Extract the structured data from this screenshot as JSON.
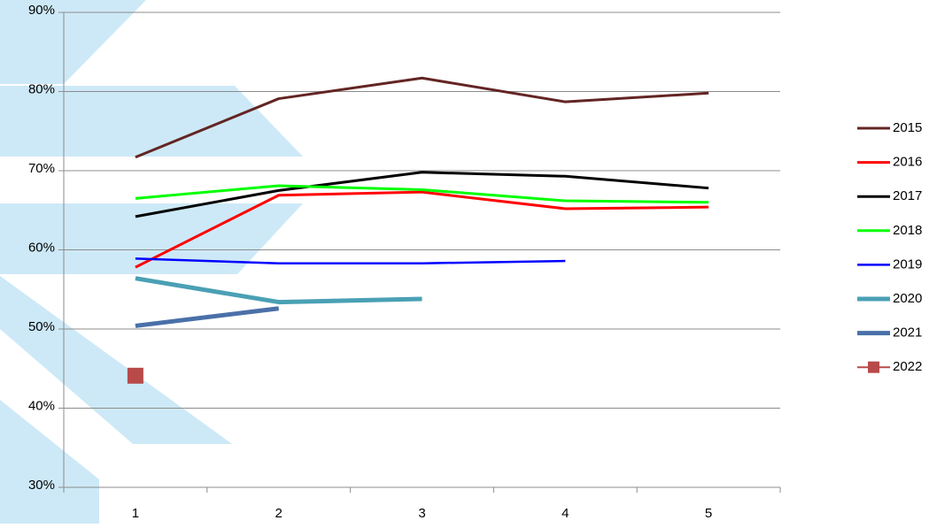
{
  "chart_data": {
    "type": "line",
    "categories": [
      "1",
      "2",
      "3",
      "4",
      "5"
    ],
    "ylim": [
      30,
      90
    ],
    "yticks": [
      {
        "value": 30,
        "label": "30%"
      },
      {
        "value": 40,
        "label": "40%"
      },
      {
        "value": 50,
        "label": "50%"
      },
      {
        "value": 60,
        "label": "60%"
      },
      {
        "value": 70,
        "label": "70%"
      },
      {
        "value": 80,
        "label": "80%"
      },
      {
        "value": 90,
        "label": "90%"
      }
    ],
    "grid": true,
    "legend": "right",
    "series": [
      {
        "name": "2015",
        "color": "#632523",
        "width": 3,
        "values": [
          71.7,
          79.1,
          81.7,
          78.7,
          79.8
        ]
      },
      {
        "name": "2016",
        "color": "#ff0000",
        "width": 3,
        "values": [
          57.8,
          66.9,
          67.3,
          65.2,
          65.4
        ]
      },
      {
        "name": "2017",
        "color": "#000000",
        "width": 3,
        "values": [
          64.2,
          67.5,
          69.8,
          69.3,
          67.8
        ]
      },
      {
        "name": "2018",
        "color": "#00ff00",
        "width": 3,
        "values": [
          66.5,
          68.1,
          67.6,
          66.2,
          66.0
        ]
      },
      {
        "name": "2019",
        "color": "#0000ff",
        "width": 2.5,
        "values": [
          58.9,
          58.3,
          58.3,
          58.6,
          null
        ]
      },
      {
        "name": "2020",
        "color": "#4aa0b5",
        "width": 5,
        "values": [
          56.4,
          53.4,
          53.8,
          null,
          null
        ]
      },
      {
        "name": "2021",
        "color": "#4a70a8",
        "width": 5,
        "values": [
          50.4,
          52.6,
          null,
          null,
          null
        ]
      },
      {
        "name": "2022",
        "color": "#b84a4a",
        "width": 2,
        "marker": "square",
        "values": [
          44.1,
          null,
          null,
          null,
          null
        ]
      }
    ]
  }
}
